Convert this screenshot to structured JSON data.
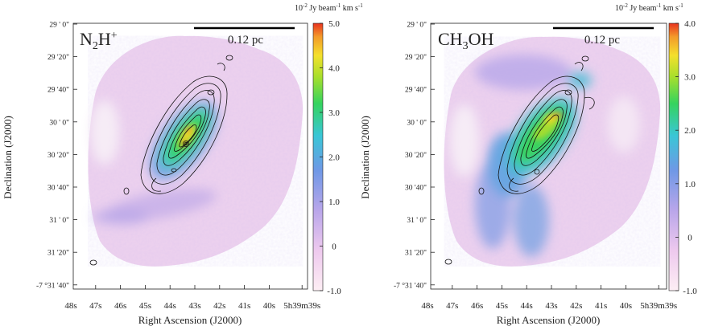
{
  "figure": {
    "panels": [
      {
        "molecule_base": "N",
        "molecule_sub": "2",
        "molecule_rest": "H",
        "molecule_sup": "+",
        "scalebar_label": "0.12 pc",
        "colorbar": {
          "unit_prefix": "10",
          "unit_exp": "-2",
          "unit_mid": " Jy beam",
          "unit_exp2": "-1",
          "unit_mid2": " km s",
          "unit_exp3": "-1",
          "ticks": [
            "5.0",
            "4.0",
            "3.0",
            "2.0",
            "1.0",
            "0",
            "-1.0"
          ],
          "range": [
            -1.0,
            5.0
          ]
        }
      },
      {
        "molecule_base": "CH",
        "molecule_sub": "3",
        "molecule_rest": "OH",
        "molecule_sup": "",
        "scalebar_label": "0.12 pc",
        "colorbar": {
          "unit_prefix": "10",
          "unit_exp": "-2",
          "unit_mid": " Jy beam",
          "unit_exp2": "-1",
          "unit_mid2": " km s",
          "unit_exp3": "-1",
          "ticks": [
            "4.0",
            "3.0",
            "2.0",
            "1.0",
            "0",
            "-1.0"
          ],
          "range": [
            -1.0,
            4.0
          ]
        }
      }
    ]
  },
  "chart_data": [
    {
      "type": "heatmap",
      "title": "N2H+",
      "xlabel": "Right Ascension (J2000)",
      "ylabel": "Declination (J2000)",
      "x_ticks": [
        "48s",
        "47s",
        "46s",
        "45s",
        "44s",
        "43s",
        "42s",
        "41s",
        "40s",
        "5h39m39s"
      ],
      "y_ticks": [
        "29 ' 0\"",
        "29 '20\"",
        "29 '40\"",
        "30 ' 0\"",
        "30 '20\"",
        "30 '40\"",
        "31 ' 0\"",
        "31 '20\"",
        "-7 °31 '40\""
      ],
      "colorbar_ticks": [
        5.0,
        4.0,
        3.0,
        2.0,
        1.0,
        0,
        -1.0
      ],
      "colorbar_range": [
        -1.0,
        5.0
      ],
      "colorbar_label": "10-2 Jy beam-1 km s-1",
      "scalebar": "0.12 pc",
      "peak_intensity": 4.6
    },
    {
      "type": "heatmap",
      "title": "CH3OH",
      "xlabel": "Right Ascension (J2000)",
      "ylabel": "Declination (J2000)",
      "x_ticks": [
        "48s",
        "47s",
        "46s",
        "45s",
        "44s",
        "43s",
        "42s",
        "41s",
        "40s",
        "5h39m39s"
      ],
      "y_ticks": [
        "29 ' 0\"",
        "29 '20\"",
        "29 '40\"",
        "30 ' 0\"",
        "30 '20\"",
        "30 '40\"",
        "31 ' 0\"",
        "31 '20\"",
        "-7 °31 '40\""
      ],
      "colorbar_ticks": [
        4.0,
        3.0,
        2.0,
        1.0,
        0,
        -1.0
      ],
      "colorbar_range": [
        -1.0,
        4.0
      ],
      "colorbar_label": "10-2 Jy beam-1 km s-1",
      "scalebar": "0.12 pc",
      "peak_intensity": 3.3
    }
  ]
}
